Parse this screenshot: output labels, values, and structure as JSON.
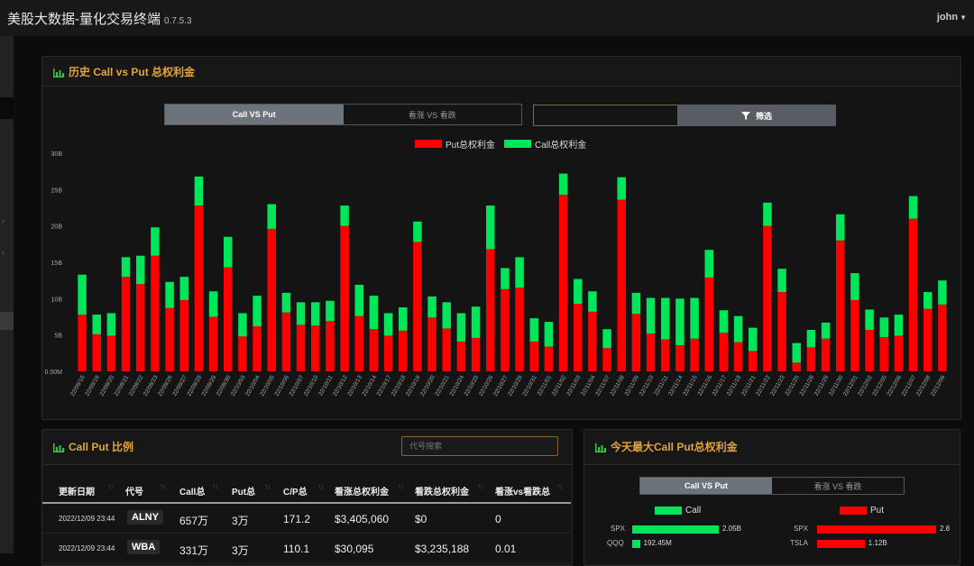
{
  "app": {
    "title": "美股大数据-量化交易终端",
    "version": "0.7.5.3",
    "user": "john"
  },
  "history_panel": {
    "title": "历史 Call vs Put 总权利金",
    "toggle": [
      "Call VS Put",
      "看涨 VS 看跌"
    ],
    "filter_label": "筛选",
    "legend": {
      "put": "Put总权利金",
      "call": "Call总权利金"
    }
  },
  "colors": {
    "put": "#ff0000",
    "call": "#00e65a",
    "accent": "#e3a33b"
  },
  "chart_data": {
    "type": "bar",
    "stacked": true,
    "ylim": [
      0,
      30
    ],
    "y_ticks": [
      "0.00M",
      "5B",
      "10B",
      "15B",
      "20B",
      "25B",
      "30B"
    ],
    "categories": [
      "22/09/16",
      "22/09/19",
      "22/09/20",
      "22/09/21",
      "22/09/22",
      "22/09/23",
      "22/09/26",
      "22/09/27",
      "22/09/28",
      "22/09/29",
      "22/09/30",
      "22/10/03",
      "22/10/04",
      "22/10/05",
      "22/10/06",
      "22/10/07",
      "22/10/10",
      "22/10/11",
      "22/10/12",
      "22/10/13",
      "22/10/14",
      "22/10/17",
      "22/10/18",
      "22/10/19",
      "22/10/20",
      "22/10/21",
      "22/10/24",
      "22/10/25",
      "22/10/26",
      "22/10/27",
      "22/10/28",
      "22/10/31",
      "22/11/01",
      "22/11/02",
      "22/11/03",
      "22/11/04",
      "22/11/07",
      "22/11/08",
      "22/11/09",
      "22/11/10",
      "22/11/11",
      "22/11/14",
      "22/11/15",
      "22/11/16",
      "22/11/17",
      "22/11/18",
      "22/11/21",
      "22/11/22",
      "22/11/23",
      "22/11/25",
      "22/11/28",
      "22/11/29",
      "22/11/30",
      "22/12/01",
      "22/12/02",
      "22/12/05",
      "22/12/06",
      "22/12/07",
      "22/12/08",
      "22/12/09"
    ],
    "series": [
      {
        "name": "Put总权利金",
        "values": [
          7.8,
          5.1,
          4.9,
          13,
          12,
          15.9,
          8.7,
          9.8,
          22.8,
          7.5,
          14.3,
          4.8,
          6.2,
          19.6,
          8.1,
          6.4,
          6.3,
          6.9,
          20,
          7.6,
          5.8,
          4.9,
          5.6,
          17.8,
          7.4,
          5.9,
          4.1,
          4.6,
          16.8,
          11.3,
          11.5,
          4.1,
          3.4,
          24.3,
          9.3,
          8.2,
          3.2,
          23.6,
          7.9,
          5.2,
          4.4,
          3.6,
          4.5,
          12.9,
          5.3,
          4,
          2.8,
          20,
          10.9,
          1.2,
          3.3,
          4.5,
          18,
          9.8,
          5.7,
          4.7,
          4.9,
          21,
          8.6,
          9.2
        ]
      },
      {
        "name": "Call总权利金",
        "values": [
          5.5,
          2.7,
          3.1,
          2.7,
          3.9,
          3.9,
          3.6,
          3.2,
          4,
          3.5,
          4.2,
          3.2,
          4.2,
          3.4,
          2.7,
          3.1,
          3.2,
          2.8,
          2.8,
          4.3,
          4.6,
          3.1,
          3.2,
          2.8,
          2.9,
          3.6,
          3.9,
          4.3,
          6,
          2.9,
          4.2,
          3.2,
          3.4,
          2.9,
          3.4,
          2.8,
          2.6,
          3.1,
          2.9,
          4.9,
          5.7,
          6.4,
          5.6,
          3.8,
          3.1,
          3.6,
          3.2,
          3.2,
          3.2,
          2.7,
          2.4,
          2.2,
          3.6,
          3.7,
          2.8,
          2.7,
          2.9,
          3.1,
          2.3,
          3.3
        ]
      }
    ]
  },
  "table_panel": {
    "title": "Call Put 比例",
    "search_placeholder": "代号搜索",
    "columns": [
      "更新日期",
      "代号",
      "Call总",
      "Put总",
      "C/P总",
      "看涨总权利金",
      "看跌总权利金",
      "看涨vs看跌总"
    ],
    "rows": [
      [
        "2022/12/09 23:44",
        "ALNY",
        "657万",
        "3万",
        "171.2",
        "$3,405,060",
        "$0",
        "0"
      ],
      [
        "2022/12/09 23:44",
        "WBA",
        "331万",
        "3万",
        "110.1",
        "$30,095",
        "$3,235,188",
        "0.01"
      ]
    ]
  },
  "today_panel": {
    "title": "今天最大Call Put总权利金",
    "toggle": [
      "Call VS Put",
      "看涨 VS 看跌"
    ],
    "call_label": "Call",
    "put_label": "Put",
    "call_rows": [
      {
        "sym": "SPX",
        "val": "2.05B",
        "pct": 1.0
      },
      {
        "sym": "QQQ",
        "val": "192.45M",
        "pct": 0.09
      }
    ],
    "put_rows": [
      {
        "sym": "SPX",
        "val": "2.8",
        "pct": 1.0
      },
      {
        "sym": "TSLA",
        "val": "1.12B",
        "pct": 0.4
      }
    ]
  }
}
